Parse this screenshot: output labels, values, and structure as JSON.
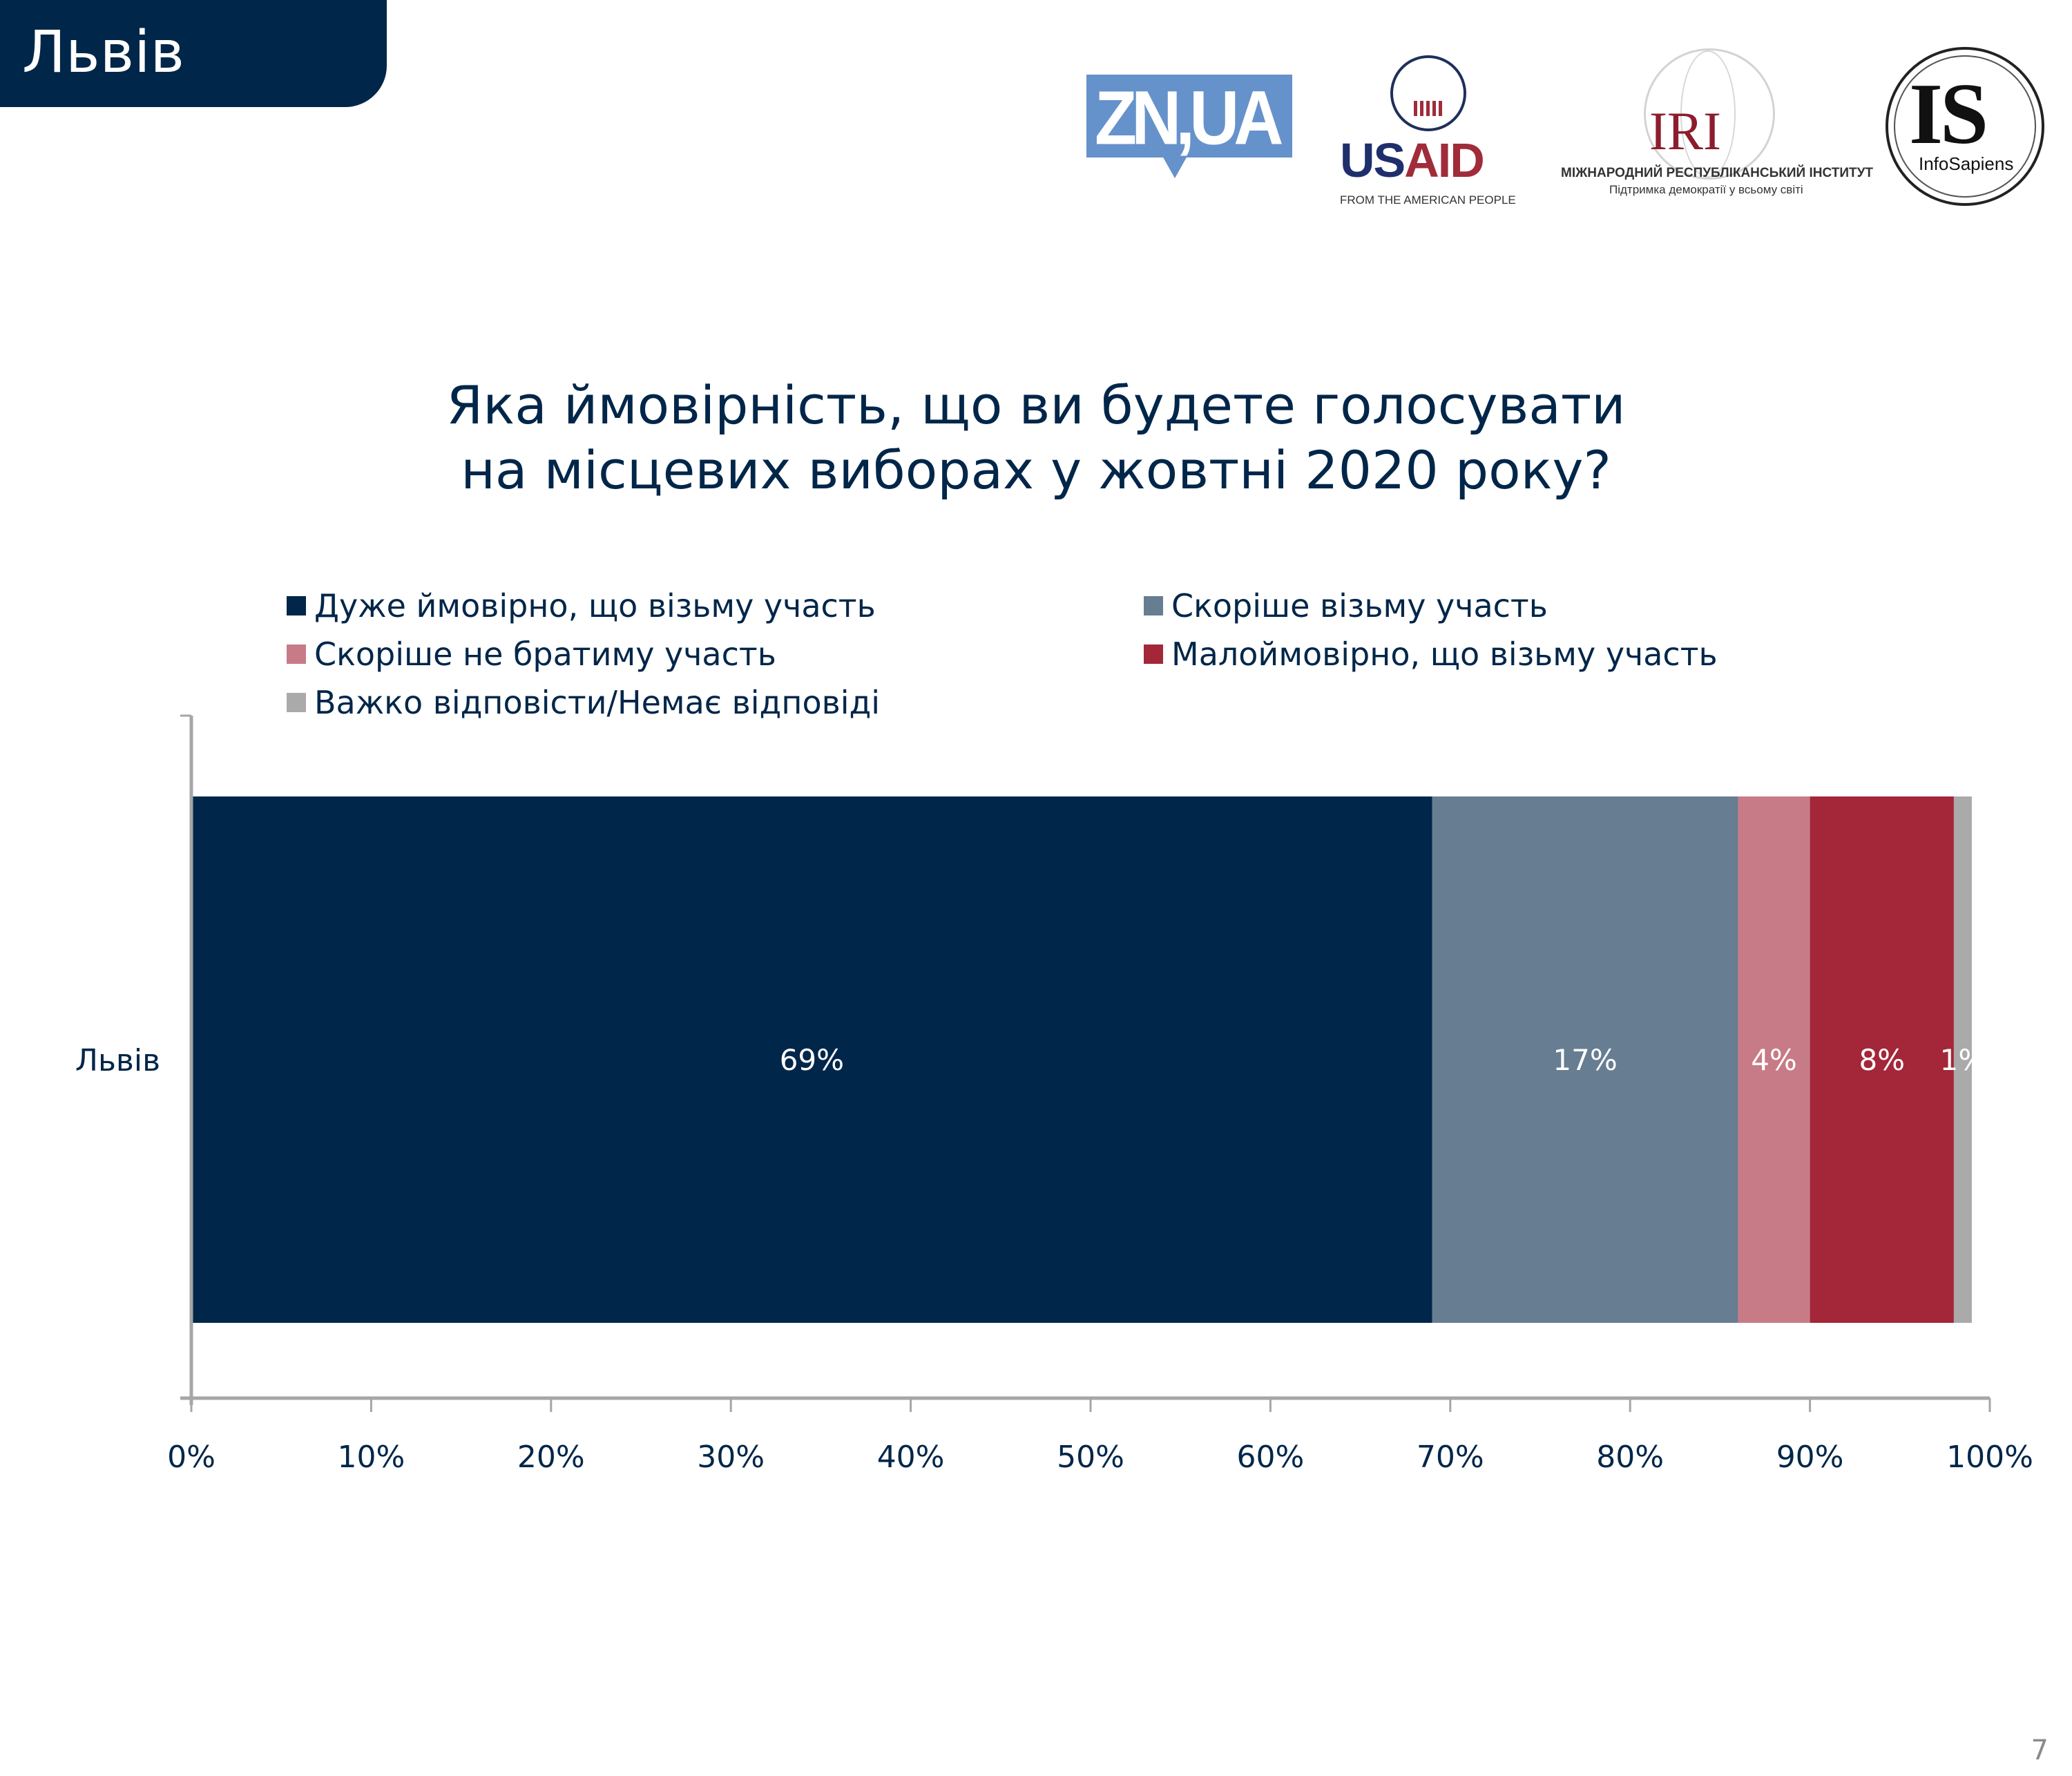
{
  "header": {
    "region": "Львів",
    "logos": {
      "zn": "ZN,UA",
      "usaid_us": "US",
      "usaid_aid": "AID",
      "usaid_sub": "FROM THE AMERICAN PEOPLE",
      "iri_mark": "IRI",
      "iri_line1": "МІЖНАРОДНИЙ РЕСПУБЛІКАНСЬКИЙ ІНСТИТУТ",
      "iri_line2": "Підтримка демократії у всьому світі",
      "is_mark": "IS",
      "is_name": "InfoSapiens"
    }
  },
  "page_number": "7",
  "chart_data": {
    "type": "bar",
    "orientation": "horizontal",
    "stacked": true,
    "title_lines": [
      "Яка ймовірність, що ви будете голосувати",
      "на місцевих виборах у жовтні 2020 року?"
    ],
    "categories": [
      "Львів"
    ],
    "series": [
      {
        "name": "Дуже ймовірно, що візьму участь",
        "values": [
          69
        ],
        "label": "69%",
        "color": "#002649"
      },
      {
        "name": "Скоріше візьму участь",
        "values": [
          17
        ],
        "label": "17%",
        "color": "#677d92"
      },
      {
        "name": "Скоріше не братиму участь",
        "values": [
          4
        ],
        "label": "4%",
        "color": "#c77b86"
      },
      {
        "name": "Малоймовірно, що візьму участь",
        "values": [
          8
        ],
        "label": "8%",
        "color": "#a32639"
      },
      {
        "name": "Важко відповісти/Немає відповіді",
        "values": [
          1
        ],
        "label": "1%",
        "color": "#aaaaab"
      }
    ],
    "xlim": [
      0,
      100
    ],
    "xticks": [
      "0%",
      "10%",
      "20%",
      "30%",
      "40%",
      "50%",
      "60%",
      "70%",
      "80%",
      "90%",
      "100%"
    ],
    "grid": false,
    "legend_position": "top",
    "xlabel": "",
    "ylabel": ""
  }
}
